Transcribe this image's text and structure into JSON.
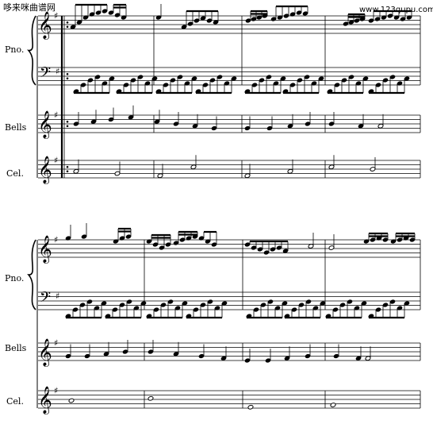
{
  "watermark": {
    "left": "哆来咪曲谱网",
    "right": "www.123qupu.com"
  },
  "instruments": {
    "piano": "Pno.",
    "bells": "Bells",
    "celesta": "Cel."
  },
  "key_signature": "G major (one sharp)"
}
